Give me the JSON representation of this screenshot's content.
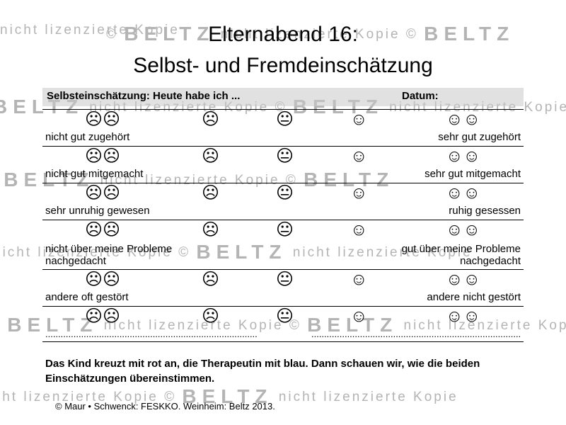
{
  "watermark": {
    "brand": "BELTZ",
    "text": "nicht lizenzierte Kopie",
    "symbol": "©"
  },
  "title": "Elternabend 16:",
  "subtitle": "Selbst- und Fremdeinschätzung",
  "table": {
    "header_left": "Selbsteinschätzung: Heute habe ich ...",
    "header_right": "Datum:",
    "faces": [
      "☹☹",
      "☹",
      "😐",
      "☺",
      "☺☺"
    ],
    "rows": [
      {
        "left": "nicht gut zugehört",
        "right": "sehr gut zugehört"
      },
      {
        "left": "nicht gut mitgemacht",
        "right": "sehr gut mitgemacht"
      },
      {
        "left": "sehr unruhig gewesen",
        "right": "ruhig gesessen"
      },
      {
        "left": "nicht über meine Probleme nachgedacht",
        "right": "gut über meine Probleme nachgedacht"
      },
      {
        "left": "andere oft gestört",
        "right": "andere nicht gestört"
      },
      {
        "left": "",
        "right": ""
      }
    ],
    "blank_line": "...................................................................................................."
  },
  "instruction": "Das Kind kreuzt mit rot an, die Therapeutin mit blau. Dann schauen wir, wie die beiden Einschätzungen übereinstimmen.",
  "copyright": "© Maur • Schwenck: FESKKO. Weinheim: Beltz 2013."
}
